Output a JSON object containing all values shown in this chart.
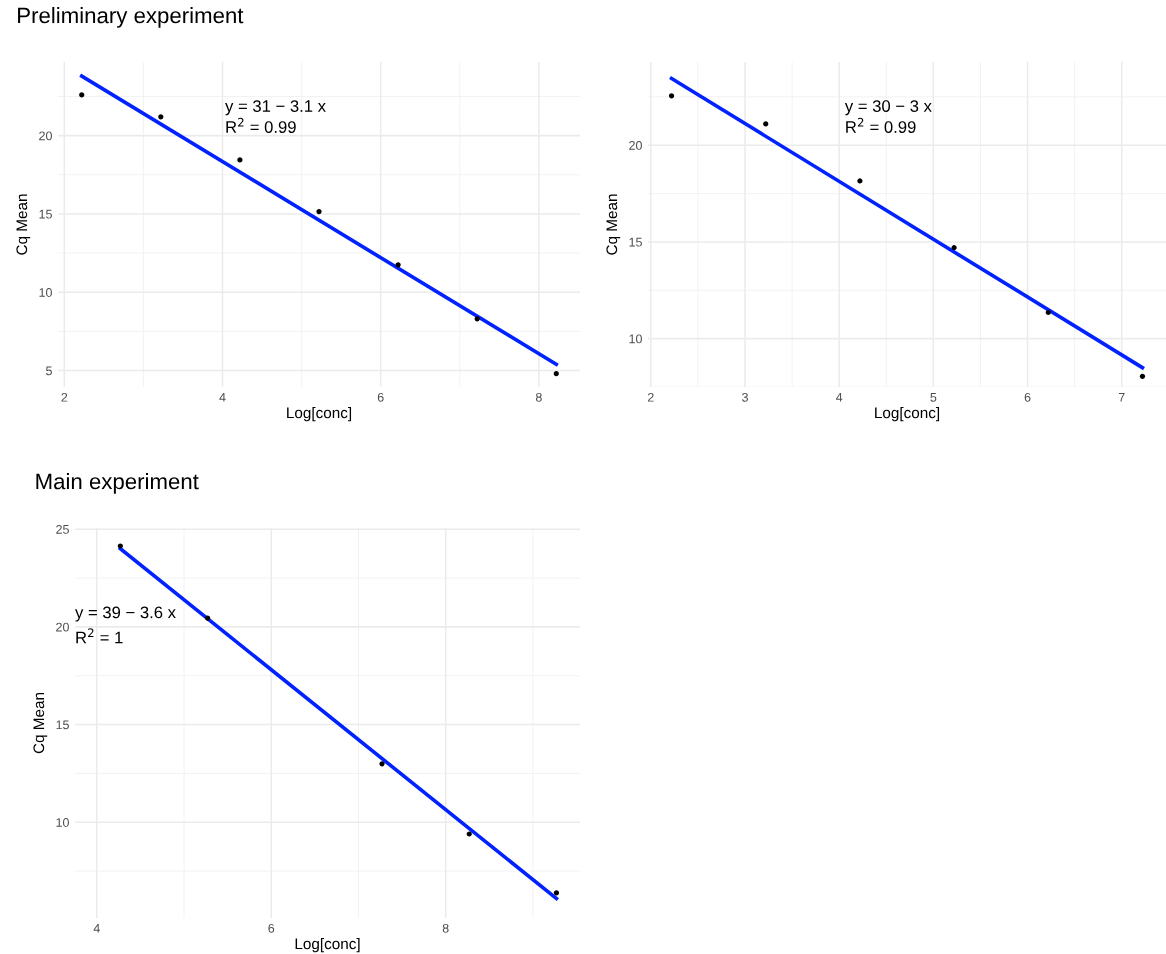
{
  "chart_data": [
    {
      "type": "scatter",
      "title": "Preliminary experiment",
      "xlabel": "Log[conc]",
      "ylabel": "Cq Mean",
      "xlim": [
        1.92,
        8.52
      ],
      "ylim": [
        3.95,
        24.7
      ],
      "xticks": [
        2,
        4,
        6,
        8
      ],
      "yticks": [
        5,
        10,
        15,
        20
      ],
      "grid": true,
      "annotations": [
        "y = 31 − 3.1 x",
        "R$^{2}$ = 0.99"
      ],
      "series": [
        {
          "marker": "circle",
          "color": "#000000",
          "x": [
            2.22,
            3.22,
            4.22,
            5.22,
            6.22,
            7.22,
            8.22
          ],
          "values": [
            22.6,
            21.2,
            18.45,
            15.15,
            11.75,
            8.3,
            4.8
          ]
        },
        {
          "type": "line",
          "color": "#0022ff",
          "x": [
            2.22,
            8.22
          ],
          "values": [
            23.8,
            5.4
          ]
        }
      ]
    },
    {
      "type": "scatter",
      "xlabel": "Log[conc]",
      "ylabel": "Cq Mean",
      "xlim": [
        1.97,
        7.47
      ],
      "ylim": [
        7.5,
        24.3
      ],
      "xticks": [
        2,
        3,
        4,
        5,
        6,
        7
      ],
      "yticks": [
        10,
        15,
        20
      ],
      "grid": true,
      "annotations": [
        "y = 30 − 3 x",
        "R$^{2}$ = 0.99"
      ],
      "series": [
        {
          "marker": "circle",
          "color": "#000000",
          "x": [
            2.22,
            3.22,
            4.22,
            5.22,
            6.22,
            7.22
          ],
          "values": [
            22.55,
            21.1,
            18.15,
            14.7,
            11.35,
            8.05
          ]
        },
        {
          "type": "line",
          "color": "#0022ff",
          "x": [
            2.22,
            7.22
          ],
          "values": [
            23.45,
            8.5
          ]
        }
      ]
    },
    {
      "type": "scatter",
      "title": "Main experiment",
      "xlabel": "Log[conc]",
      "ylabel": "Cq Mean",
      "xlim": [
        3.75,
        9.54
      ],
      "ylim": [
        5.1,
        25.06
      ],
      "xticks": [
        4,
        6,
        8
      ],
      "yticks": [
        10,
        15,
        20,
        25
      ],
      "grid": true,
      "annotations": [
        "y = 39 − 3.6 x",
        "R$^{2}$ = 1"
      ],
      "series": [
        {
          "marker": "circle",
          "color": "#000000",
          "x": [
            4.27,
            5.27,
            7.27,
            8.27,
            9.27
          ],
          "values": [
            24.14,
            20.45,
            12.99,
            9.4,
            6.39
          ]
        },
        {
          "type": "line",
          "color": "#0022ff",
          "x": [
            4.27,
            9.27
          ],
          "values": [
            24.0,
            6.1
          ]
        }
      ]
    }
  ]
}
